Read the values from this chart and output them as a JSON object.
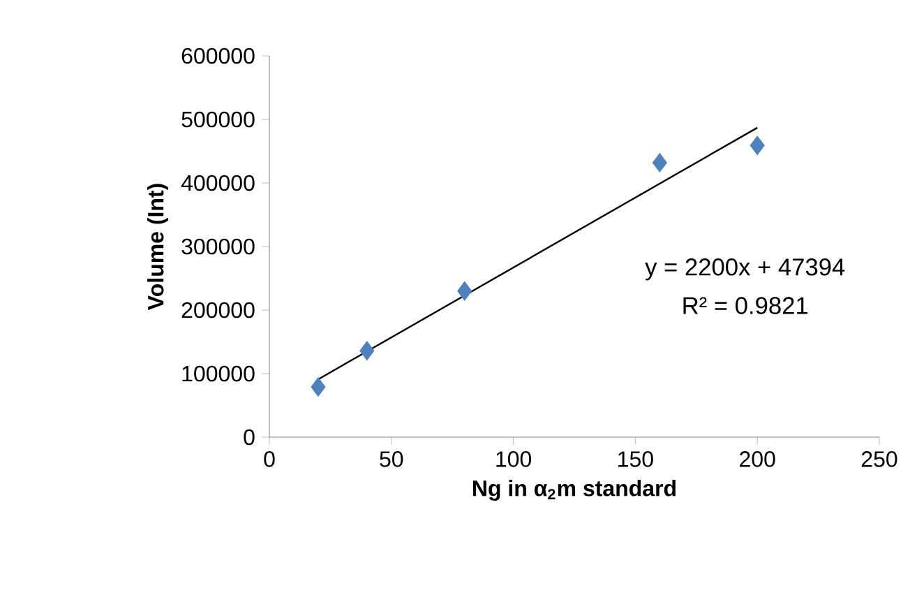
{
  "chart_data": {
    "type": "scatter",
    "xlabel": "Ng in α$_{2}$m standard",
    "ylabel": "Volume (Int)",
    "xlim": [
      0,
      250
    ],
    "xticks": [
      0,
      50,
      100,
      150,
      200,
      250
    ],
    "ylim": [
      0,
      600000
    ],
    "yticks": [
      0,
      100000,
      200000,
      300000,
      400000,
      500000,
      600000
    ],
    "grid": false,
    "annotations": [
      "y = 2200x + 47394",
      "R² = 0.9821"
    ],
    "series": [
      {
        "color": "#4f81bd",
        "marker": "diamond",
        "x": [
          20,
          40,
          80,
          160,
          200
        ],
        "values": [
          79000,
          136000,
          230000,
          432000,
          459000
        ]
      },
      {
        "type": "line",
        "color": "#000000",
        "marker": "none",
        "line_style": "solid",
        "x": [
          20,
          200
        ],
        "values": [
          91000,
          487000
        ]
      }
    ]
  }
}
